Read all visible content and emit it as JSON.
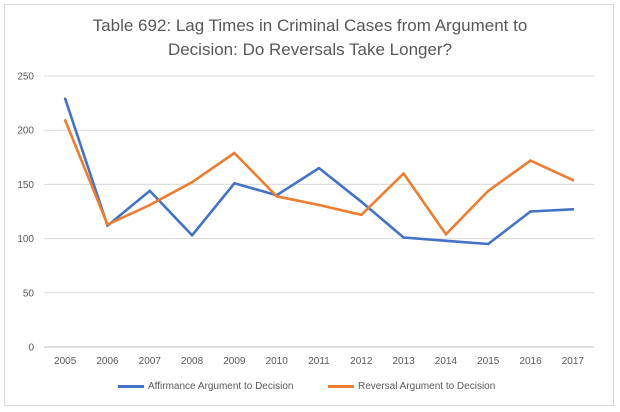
{
  "chart_data": {
    "type": "line",
    "title_lines": [
      "Table 692: Lag Times in Criminal Cases from Argument to",
      "Decision: Do Reversals Take Longer?"
    ],
    "categories": [
      "2005",
      "2006",
      "2007",
      "2008",
      "2009",
      "2010",
      "2011",
      "2012",
      "2013",
      "2014",
      "2015",
      "2016",
      "2017"
    ],
    "ylim": [
      0,
      250
    ],
    "yticks": [
      0,
      50,
      100,
      150,
      200,
      250
    ],
    "grid": true,
    "legend_position": "bottom",
    "series": [
      {
        "name": "Affirmance Argument to Decision",
        "color": "#4472c4",
        "values": [
          229,
          112,
          144,
          103,
          151,
          140,
          165,
          134,
          101,
          98,
          95,
          125,
          127
        ]
      },
      {
        "name": "Reversal Argument to Decision",
        "color": "#ed7d31",
        "values": [
          209,
          113,
          131,
          152,
          179,
          139,
          131,
          122,
          160,
          104,
          144,
          172,
          154
        ]
      }
    ]
  }
}
